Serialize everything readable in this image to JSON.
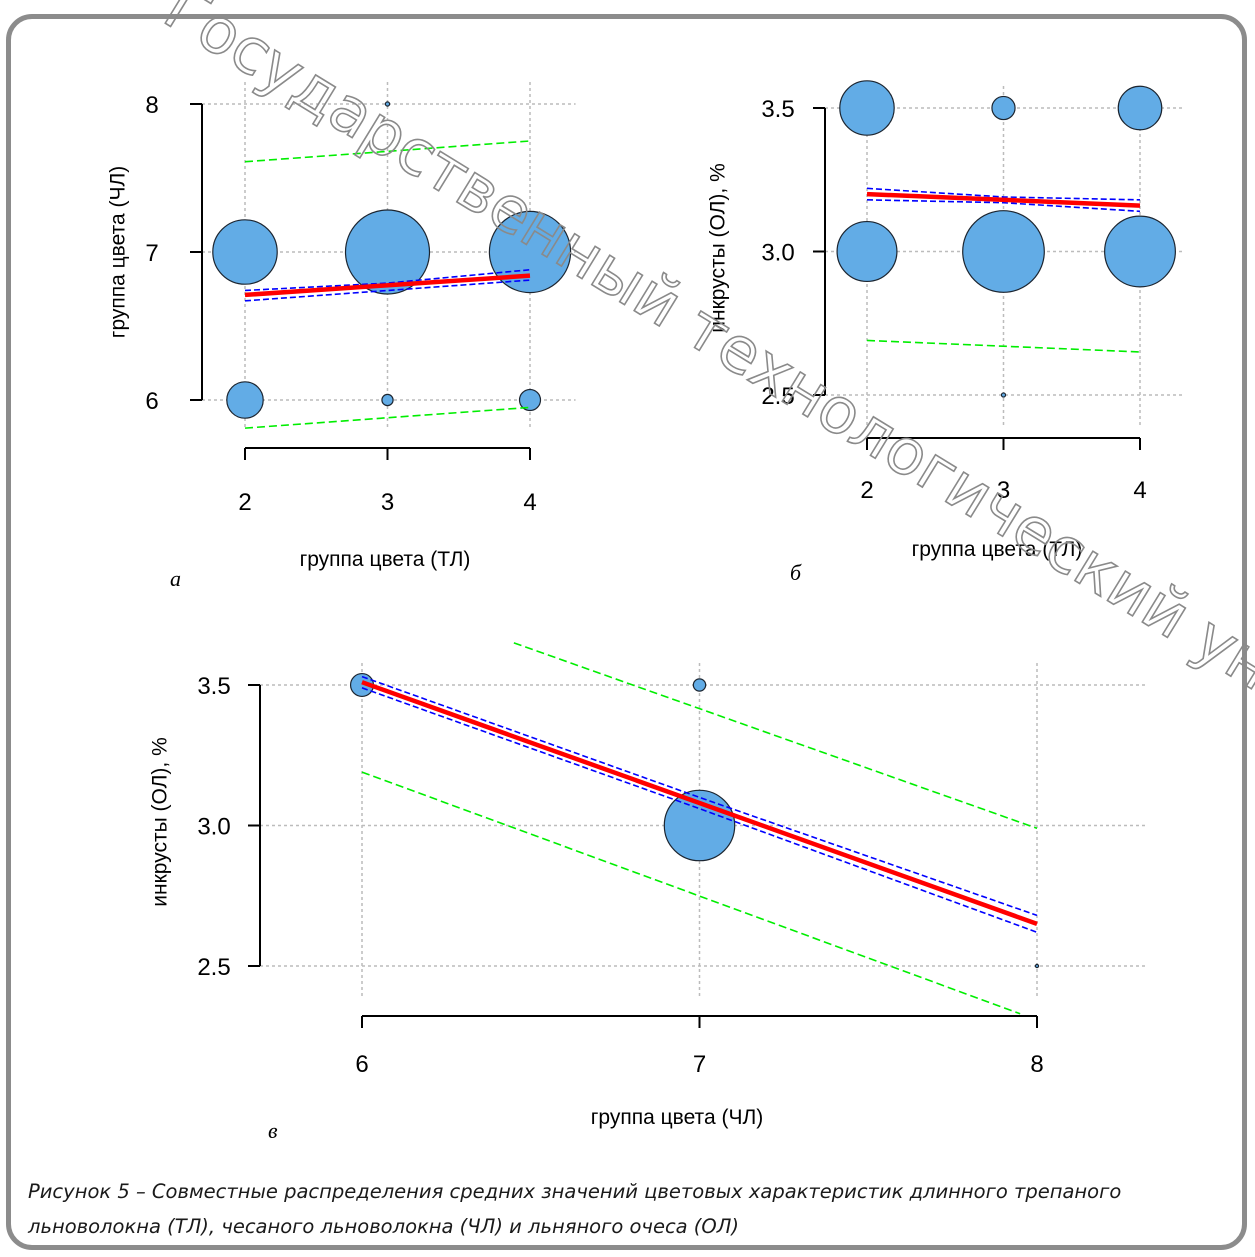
{
  "watermark": "Государственный технологический университет",
  "caption": {
    "line1": "Рисунок 5 – Совместные распределения средних значений цветовых характеристик длинного трепаного",
    "line2": "льноволокна (ТЛ), чесаного льноволокна (ЧЛ) и льняного очеса (ОЛ)"
  },
  "colors": {
    "bubble_fill": "#62ace6",
    "regression": "#ff0000",
    "confidence_band": "#0000ff",
    "prediction_band": "#00ee00",
    "grid": "#bcbcbc",
    "frame": "#8c8c8c"
  },
  "chart_data": [
    {
      "panel": "а",
      "type": "scatter",
      "xlabel": "группа цвета (ТЛ)",
      "ylabel": "группа цвета (ЧЛ)",
      "xlim": [
        2,
        4
      ],
      "ylim": [
        6,
        8
      ],
      "x_ticks": [
        "2",
        "3",
        "4"
      ],
      "y_ticks": [
        "6",
        "7",
        "8"
      ],
      "grid": true,
      "points": [
        {
          "x": 3,
          "y": 8,
          "size": 0.03
        },
        {
          "x": 2,
          "y": 7,
          "size": 0.46
        },
        {
          "x": 3,
          "y": 7,
          "size": 0.6
        },
        {
          "x": 4,
          "y": 7,
          "size": 0.58
        },
        {
          "x": 2,
          "y": 6,
          "size": 0.26
        },
        {
          "x": 3,
          "y": 6,
          "size": 0.08
        },
        {
          "x": 4,
          "y": 6,
          "size": 0.15
        }
      ],
      "regression": [
        [
          2,
          6.71
        ],
        [
          4,
          6.84
        ]
      ],
      "confidence_upper": [
        [
          2,
          6.74
        ],
        [
          3,
          6.79
        ],
        [
          4,
          6.88
        ]
      ],
      "confidence_lower": [
        [
          2,
          6.67
        ],
        [
          3,
          6.74
        ],
        [
          4,
          6.81
        ]
      ],
      "prediction_upper": [
        [
          2,
          7.61
        ],
        [
          4,
          7.75
        ]
      ],
      "prediction_lower": [
        [
          2,
          5.81
        ],
        [
          4,
          5.95
        ]
      ]
    },
    {
      "panel": "б",
      "type": "scatter",
      "xlabel": "группа цвета (ТЛ)",
      "ylabel": "инкрусты (ОЛ), %",
      "xlim": [
        2,
        4
      ],
      "ylim": [
        2.5,
        3.5
      ],
      "x_ticks": [
        "2",
        "3",
        "4"
      ],
      "y_ticks": [
        "2.5",
        "3.0",
        "3.5"
      ],
      "grid": true,
      "points": [
        {
          "x": 2,
          "y": 3.5,
          "size": 0.4
        },
        {
          "x": 3,
          "y": 3.5,
          "size": 0.17
        },
        {
          "x": 4,
          "y": 3.5,
          "size": 0.32
        },
        {
          "x": 2,
          "y": 3.0,
          "size": 0.44
        },
        {
          "x": 3,
          "y": 3.0,
          "size": 0.6
        },
        {
          "x": 4,
          "y": 3.0,
          "size": 0.52
        },
        {
          "x": 3,
          "y": 2.5,
          "size": 0.03
        }
      ],
      "regression": [
        [
          2,
          3.2
        ],
        [
          4,
          3.16
        ]
      ],
      "confidence_upper": [
        [
          2,
          3.22
        ],
        [
          3,
          3.19
        ],
        [
          4,
          3.18
        ]
      ],
      "confidence_lower": [
        [
          2,
          3.18
        ],
        [
          3,
          3.17
        ],
        [
          4,
          3.14
        ]
      ],
      "prediction_upper": [],
      "prediction_lower": [
        [
          2,
          2.69
        ],
        [
          4,
          2.65
        ]
      ]
    },
    {
      "panel": "в",
      "type": "scatter",
      "xlabel": "группа цвета (ЧЛ)",
      "ylabel": "инкрусты (ОЛ), %",
      "xlim": [
        6,
        8
      ],
      "ylim": [
        2.5,
        3.5
      ],
      "x_ticks": [
        "6",
        "7",
        "8"
      ],
      "y_ticks": [
        "2.5",
        "3.0",
        "3.5"
      ],
      "grid": true,
      "points": [
        {
          "x": 6,
          "y": 3.5,
          "size": 0.26
        },
        {
          "x": 7,
          "y": 3.5,
          "size": 0.14
        },
        {
          "x": 7,
          "y": 3.0,
          "size": 0.8
        },
        {
          "x": 8,
          "y": 2.5,
          "size": 0.02
        }
      ],
      "regression": [
        [
          6,
          3.51
        ],
        [
          8,
          2.65
        ]
      ],
      "confidence_upper": [
        [
          6,
          3.53
        ],
        [
          7,
          3.1
        ],
        [
          8,
          2.68
        ]
      ],
      "confidence_lower": [
        [
          6,
          3.49
        ],
        [
          7,
          3.06
        ],
        [
          8,
          2.62
        ]
      ],
      "prediction_upper": [
        [
          6.45,
          3.65
        ],
        [
          8,
          2.99
        ]
      ],
      "prediction_lower": [
        [
          6,
          3.19
        ],
        [
          7.95,
          2.33
        ]
      ]
    }
  ]
}
